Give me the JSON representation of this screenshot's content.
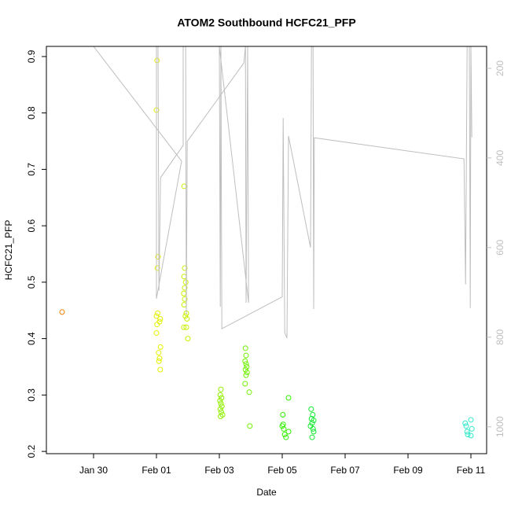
{
  "chart_data": {
    "type": "scatter",
    "title": "ATOM2 Southbound HCFC21_PFP",
    "xlabel": "Date",
    "ylabel": "HCFC21_PFP",
    "xlim": [
      28.5,
      42.5
    ],
    "xticks": [
      {
        "value": 30,
        "label": "Jan 30"
      },
      {
        "value": 32,
        "label": "Feb 01"
      },
      {
        "value": 34,
        "label": "Feb 03"
      },
      {
        "value": 36,
        "label": "Feb 05"
      },
      {
        "value": 38,
        "label": "Feb 07"
      },
      {
        "value": 40,
        "label": "Feb 09"
      },
      {
        "value": 42,
        "label": "Feb 11"
      }
    ],
    "ylim": [
      0.196,
      0.918
    ],
    "yticks": [
      0.2,
      0.3,
      0.4,
      0.5,
      0.6,
      0.7,
      0.8,
      0.9
    ],
    "y2lim": [
      1060,
      151
    ],
    "y2ticks": [
      200,
      400,
      600,
      800,
      1000
    ],
    "series": [
      {
        "color": "#f08000",
        "x": [
          29.0
        ],
        "values": [
          0.447
        ]
      },
      {
        "color": "#e5f000",
        "x": [
          32.02,
          32.0,
          32.05,
          32.03,
          32.04,
          32.0,
          32.12,
          32.1,
          32.02,
          32.0,
          32.13,
          32.07,
          32.1,
          32.08,
          32.12
        ],
        "values": [
          0.893,
          0.805,
          0.545,
          0.525,
          0.445,
          0.44,
          0.435,
          0.43,
          0.425,
          0.41,
          0.385,
          0.375,
          0.365,
          0.36,
          0.345
        ]
      },
      {
        "color": "#c8f000",
        "x": [
          32.88,
          32.9,
          32.88,
          32.93,
          32.9,
          32.87,
          32.9,
          32.88,
          32.95,
          32.92,
          32.97,
          32.87,
          32.95,
          33.0
        ],
        "values": [
          0.67,
          0.525,
          0.51,
          0.5,
          0.49,
          0.48,
          0.47,
          0.46,
          0.445,
          0.44,
          0.435,
          0.42,
          0.42,
          0.4
        ]
      },
      {
        "color": "#90f000",
        "x": [
          34.05,
          34.03,
          34.07,
          34.02,
          34.05,
          34.08,
          34.03,
          34.06,
          34.1,
          34.04
        ],
        "values": [
          0.31,
          0.3,
          0.295,
          0.29,
          0.285,
          0.28,
          0.275,
          0.27,
          0.265,
          0.262
        ]
      },
      {
        "color": "#70f000",
        "x": [
          34.83,
          34.85,
          34.82,
          34.85,
          34.87,
          34.83,
          34.88,
          34.85,
          34.82,
          34.95,
          34.97
        ],
        "values": [
          0.383,
          0.37,
          0.36,
          0.355,
          0.35,
          0.345,
          0.34,
          0.335,
          0.32,
          0.305,
          0.245
        ]
      },
      {
        "color": "#30f000",
        "x": [
          36.2,
          36.02,
          36.03,
          36.0,
          36.05,
          36.2,
          36.08,
          36.12
        ],
        "values": [
          0.295,
          0.265,
          0.248,
          0.245,
          0.24,
          0.235,
          0.23,
          0.225
        ]
      },
      {
        "color": "#10e830",
        "x": [
          36.92,
          36.97,
          36.93,
          37.0,
          36.95,
          36.9,
          36.98,
          37.0,
          36.95
        ],
        "values": [
          0.275,
          0.265,
          0.258,
          0.255,
          0.25,
          0.245,
          0.24,
          0.235,
          0.225
        ]
      },
      {
        "color": "#30e8c8",
        "x": [
          42.0,
          41.82,
          41.85,
          42.03,
          41.88,
          41.9,
          42.0
        ],
        "values": [
          0.256,
          0.25,
          0.245,
          0.24,
          0.235,
          0.23,
          0.228
        ]
      },
      {
        "type": "line",
        "axis": "y2",
        "color": "#bebebe",
        "x": [
          30,
          32.8,
          32.0,
          32.0,
          32.05,
          32.08,
          32.13,
          32.85,
          32.85,
          32.93,
          32.95,
          32.98,
          34.78,
          34.83,
          34.85,
          34.9,
          34.93,
          34.0,
          34.03,
          34.05,
          34.08,
          36.0,
          36.03,
          36.08,
          36.15,
          36.2,
          36.9,
          36.93,
          36.98,
          37.0,
          37.02,
          41.78,
          41.83,
          41.88,
          41.95,
          41.98,
          42.0,
          42.03
        ],
        "values": [
          151,
          407,
          714,
          151,
          151,
          696,
          444,
          372,
          151,
          151,
          749,
          363,
          188,
          151,
          723,
          151,
          723,
          151,
          732,
          151,
          781,
          710,
          311,
          790,
          802,
          351,
          600,
          151,
          151,
          737,
          355,
          402,
          682,
          151,
          151,
          735,
          151,
          354
        ]
      }
    ]
  }
}
